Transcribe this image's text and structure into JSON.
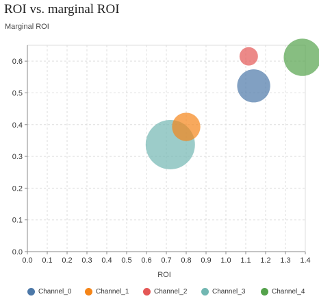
{
  "chart_data": {
    "type": "scatter",
    "title": "ROI vs. marginal ROI",
    "ylabel": "Marginal ROI",
    "xlabel": "ROI",
    "xlim": [
      0.0,
      1.4
    ],
    "ylim": [
      0.0,
      0.65
    ],
    "x_ticks": [
      "0.0",
      "0.1",
      "0.2",
      "0.3",
      "0.4",
      "0.5",
      "0.6",
      "0.7",
      "0.8",
      "0.9",
      "1.0",
      "1.1",
      "1.2",
      "1.3",
      "1.4"
    ],
    "y_ticks": [
      "0.0",
      "0.1",
      "0.2",
      "0.3",
      "0.4",
      "0.5",
      "0.6"
    ],
    "grid": true,
    "legend_position": "bottom",
    "series": [
      {
        "name": "Channel_0",
        "color": "#4c78a8",
        "x": 1.14,
        "y": 0.522,
        "size": 0.45
      },
      {
        "name": "Channel_1",
        "color": "#f58518",
        "x": 0.8,
        "y": 0.393,
        "size": 0.33
      },
      {
        "name": "Channel_2",
        "color": "#e45756",
        "x": 1.115,
        "y": 0.615,
        "size": 0.14
      },
      {
        "name": "Channel_3",
        "color": "#72b7b2",
        "x": 0.72,
        "y": 0.337,
        "size": 1.0
      },
      {
        "name": "Channel_4",
        "color": "#54a24b",
        "x": 1.385,
        "y": 0.612,
        "size": 0.57
      }
    ]
  }
}
